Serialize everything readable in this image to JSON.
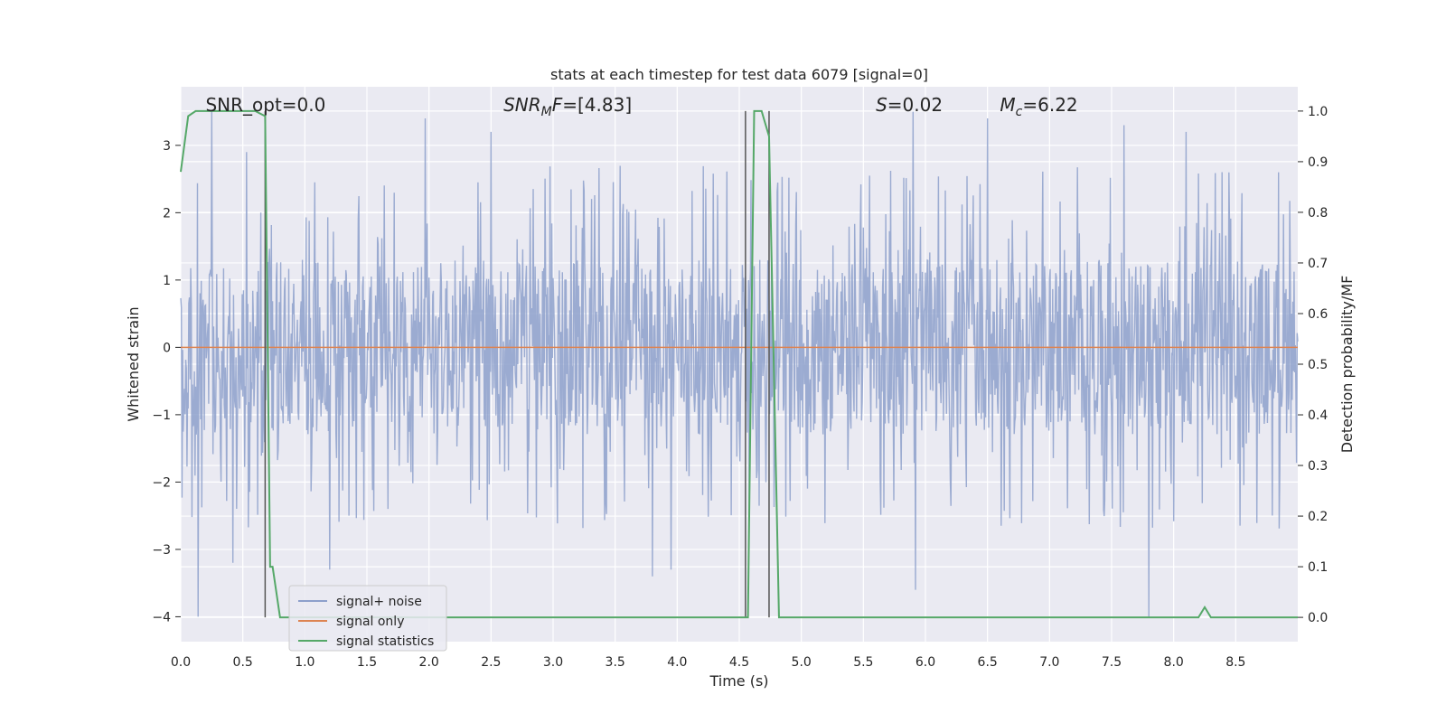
{
  "chart_data": {
    "type": "line",
    "title": "stats at each timestep for test data 6079 [signal=0]",
    "xlabel": "Time (s)",
    "ylabel_left": "Whitened strain",
    "ylabel_right": "Detection probability/MF",
    "xlim": [
      0.0,
      9.0
    ],
    "ylim_left": [
      -4.37,
      3.87
    ],
    "ylim_right": [
      -0.048,
      1.048
    ],
    "x_ticks": [
      "0.0",
      "0.5",
      "1.0",
      "1.5",
      "2.0",
      "2.5",
      "3.0",
      "3.5",
      "4.0",
      "4.5",
      "5.0",
      "5.5",
      "6.0",
      "6.5",
      "7.0",
      "7.5",
      "8.0",
      "8.5"
    ],
    "y_ticks_left": [
      "3",
      "2",
      "1",
      "0",
      "−1",
      "−2",
      "−3",
      "−4"
    ],
    "y_ticks_right": [
      "1.0",
      "0.9",
      "0.8",
      "0.7",
      "0.6",
      "0.5",
      "0.4",
      "0.3",
      "0.2",
      "0.1",
      "0.0"
    ],
    "grid": true,
    "legend_position": "lower-left",
    "annotations": [
      {
        "text": "SNR_opt=0.0",
        "x": 0.2
      },
      {
        "text": "SNR_MF=[4.83]",
        "x": 2.6
      },
      {
        "text": "S=0.02",
        "x": 5.6
      },
      {
        "text": "M_c=6.22",
        "x": 6.6
      }
    ],
    "series": [
      {
        "name": "signal+ noise",
        "axis": "left",
        "color": "#8da0cb",
        "style": "dense noise trace, approx. amplitude ±1.3 with spikes up to 3.5 and down to -4.0",
        "spikes": [
          {
            "x": 0.14,
            "y": -4.0
          },
          {
            "x": 0.25,
            "y": 3.5
          },
          {
            "x": 0.42,
            "y": -3.2
          },
          {
            "x": 0.53,
            "y": 2.9
          },
          {
            "x": 1.2,
            "y": -3.3
          },
          {
            "x": 1.97,
            "y": 3.4
          },
          {
            "x": 2.5,
            "y": 3.2
          },
          {
            "x": 3.8,
            "y": -3.4
          },
          {
            "x": 3.95,
            "y": -3.3
          },
          {
            "x": 5.9,
            "y": 3.5
          },
          {
            "x": 5.92,
            "y": -3.6
          },
          {
            "x": 6.5,
            "y": 3.4
          },
          {
            "x": 7.6,
            "y": 3.3
          },
          {
            "x": 7.8,
            "y": -4.0
          },
          {
            "x": 8.1,
            "y": 3.2
          }
        ]
      },
      {
        "name": "signal only",
        "axis": "left",
        "color": "#dd8452",
        "x": [
          0.0,
          9.0
        ],
        "y": [
          0.0,
          0.0
        ]
      },
      {
        "name": "signal statistics",
        "axis": "right",
        "color": "#55a868",
        "x": [
          0.0,
          0.06,
          0.12,
          0.6,
          0.68,
          0.72,
          0.74,
          0.8,
          4.52,
          4.57,
          4.62,
          4.68,
          4.74,
          4.82,
          4.87,
          8.2,
          8.25,
          8.3,
          9.0
        ],
        "y": [
          0.88,
          0.99,
          1.0,
          1.0,
          0.99,
          0.1,
          0.1,
          0.0,
          0.0,
          0.0,
          1.0,
          1.0,
          0.95,
          0.0,
          0.0,
          0.0,
          0.02,
          0.0,
          0.0
        ]
      }
    ],
    "vertical_lines": [
      0.68,
      4.55,
      4.74
    ]
  }
}
